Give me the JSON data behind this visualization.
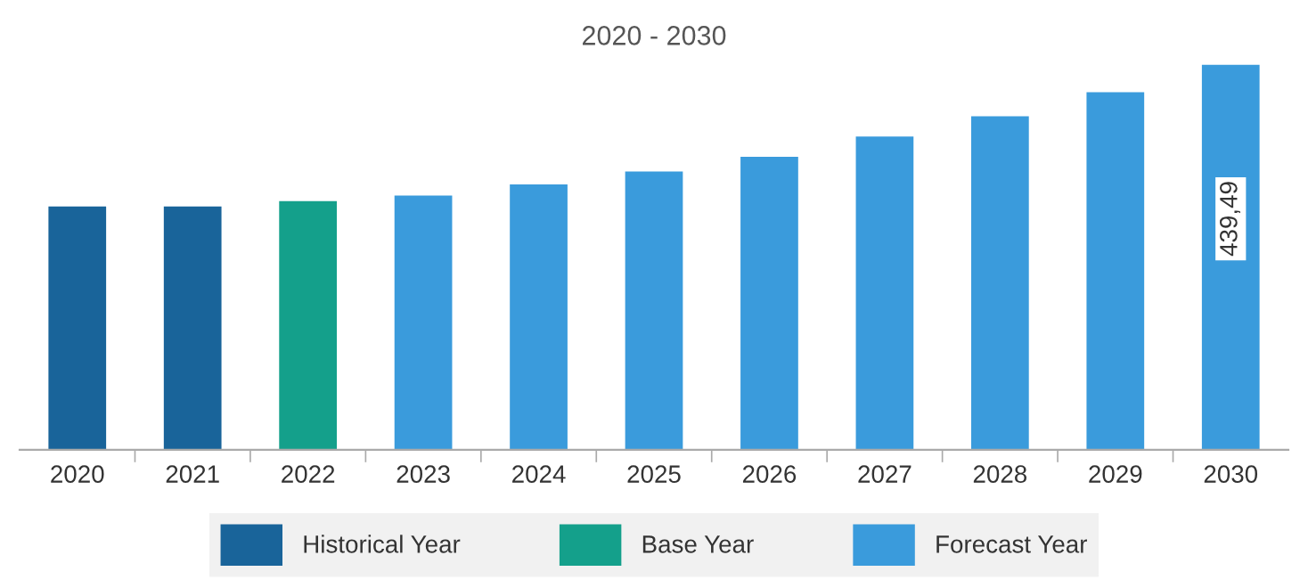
{
  "chart_data": {
    "type": "bar",
    "title": "2020 - 2030",
    "categories": [
      "2020",
      "2021",
      "2022",
      "2023",
      "2024",
      "2025",
      "2026",
      "2027",
      "2028",
      "2029",
      "2030"
    ],
    "series": [
      {
        "name": "Historical Year",
        "color": "#19649a",
        "values": [
          277.6,
          277.6,
          null,
          null,
          null,
          null,
          null,
          null,
          null,
          null,
          null
        ]
      },
      {
        "name": "Base Year",
        "color": "#14a08b",
        "values": [
          null,
          null,
          283.9,
          null,
          null,
          null,
          null,
          null,
          null,
          null,
          null
        ]
      },
      {
        "name": "Forecast Year",
        "color": "#3a9bdc",
        "values": [
          null,
          null,
          null,
          290.2,
          302.8,
          317.5,
          334.4,
          357.5,
          380.6,
          408.0,
          439.49
        ],
        "value_labels": [
          null,
          null,
          null,
          null,
          null,
          null,
          null,
          null,
          null,
          null,
          "439,49"
        ]
      }
    ],
    "legend": "bottom",
    "grid": false
  }
}
